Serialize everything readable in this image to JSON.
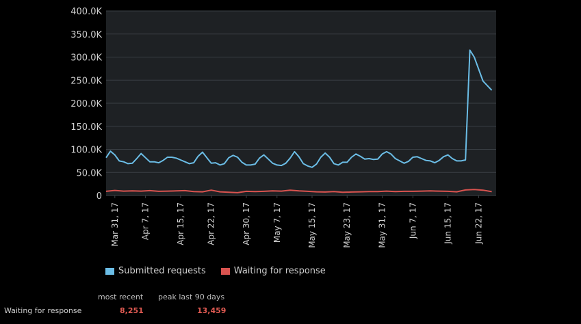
{
  "colors": {
    "plot_bg": "#1e2124",
    "grid": "#3a3f44",
    "axis_text": "#d0d0d0",
    "series_submitted": "#6bbde6",
    "series_waiting": "#d9534f",
    "stat_value": "#e05a52"
  },
  "chart_data": {
    "type": "line",
    "xlabel": "",
    "ylabel": "",
    "ylim": [
      0,
      400000
    ],
    "y_ticks": [
      "0",
      "50.0K",
      "100.0K",
      "150.0K",
      "200.0K",
      "250.0K",
      "300.0K",
      "350.0K",
      "400.0K"
    ],
    "x_range": [
      "2017-03-29",
      "2017-06-26"
    ],
    "x_tick_labels": [
      {
        "date": "2017-03-31",
        "label": "Mar 31, 17"
      },
      {
        "date": "2017-04-07",
        "label": "Apr 7, 17"
      },
      {
        "date": "2017-04-15",
        "label": "Apr 15, 17"
      },
      {
        "date": "2017-04-22",
        "label": "Apr 22, 17"
      },
      {
        "date": "2017-04-30",
        "label": "Apr 30, 17"
      },
      {
        "date": "2017-05-07",
        "label": "May 7, 17"
      },
      {
        "date": "2017-05-15",
        "label": "May 15, 17"
      },
      {
        "date": "2017-05-23",
        "label": "May 23, 17"
      },
      {
        "date": "2017-05-31",
        "label": "May 31, 17"
      },
      {
        "date": "2017-06-07",
        "label": "Jun 7, 17"
      },
      {
        "date": "2017-06-15",
        "label": "Jun 15, 17"
      },
      {
        "date": "2017-06-22",
        "label": "Jun 22, 17"
      }
    ],
    "grid": true,
    "legend_position": "bottom-left",
    "series": [
      {
        "name": "Submitted requests",
        "points": [
          [
            "2017-03-29",
            82000
          ],
          [
            "2017-03-30",
            96000
          ],
          [
            "2017-03-31",
            88000
          ],
          [
            "2017-04-01",
            75000
          ],
          [
            "2017-04-02",
            73000
          ],
          [
            "2017-04-03",
            69000
          ],
          [
            "2017-04-04",
            70000
          ],
          [
            "2017-04-05",
            80000
          ],
          [
            "2017-04-06",
            91000
          ],
          [
            "2017-04-07",
            82000
          ],
          [
            "2017-04-08",
            73000
          ],
          [
            "2017-04-09",
            73000
          ],
          [
            "2017-04-10",
            71000
          ],
          [
            "2017-04-11",
            76000
          ],
          [
            "2017-04-12",
            83000
          ],
          [
            "2017-04-13",
            83000
          ],
          [
            "2017-04-14",
            81000
          ],
          [
            "2017-04-15",
            77000
          ],
          [
            "2017-04-16",
            73000
          ],
          [
            "2017-04-17",
            69000
          ],
          [
            "2017-04-18",
            71000
          ],
          [
            "2017-04-19",
            85000
          ],
          [
            "2017-04-20",
            94000
          ],
          [
            "2017-04-21",
            82000
          ],
          [
            "2017-04-22",
            70000
          ],
          [
            "2017-04-23",
            71000
          ],
          [
            "2017-04-24",
            66000
          ],
          [
            "2017-04-25",
            69000
          ],
          [
            "2017-04-26",
            82000
          ],
          [
            "2017-04-27",
            87000
          ],
          [
            "2017-04-28",
            83000
          ],
          [
            "2017-04-29",
            72000
          ],
          [
            "2017-04-30",
            66000
          ],
          [
            "2017-05-01",
            66000
          ],
          [
            "2017-05-02",
            68000
          ],
          [
            "2017-05-03",
            81000
          ],
          [
            "2017-05-04",
            88000
          ],
          [
            "2017-05-05",
            79000
          ],
          [
            "2017-05-06",
            70000
          ],
          [
            "2017-05-07",
            66000
          ],
          [
            "2017-05-08",
            65000
          ],
          [
            "2017-05-09",
            70000
          ],
          [
            "2017-05-10",
            81000
          ],
          [
            "2017-05-11",
            95000
          ],
          [
            "2017-05-12",
            84000
          ],
          [
            "2017-05-13",
            69000
          ],
          [
            "2017-05-14",
            64000
          ],
          [
            "2017-05-15",
            61000
          ],
          [
            "2017-05-16",
            68000
          ],
          [
            "2017-05-17",
            83000
          ],
          [
            "2017-05-18",
            92000
          ],
          [
            "2017-05-19",
            83000
          ],
          [
            "2017-05-20",
            69000
          ],
          [
            "2017-05-21",
            66000
          ],
          [
            "2017-05-22",
            72000
          ],
          [
            "2017-05-23",
            72000
          ],
          [
            "2017-05-24",
            83000
          ],
          [
            "2017-05-25",
            90000
          ],
          [
            "2017-05-26",
            85000
          ],
          [
            "2017-05-27",
            79000
          ],
          [
            "2017-05-28",
            80000
          ],
          [
            "2017-05-29",
            78000
          ],
          [
            "2017-05-30",
            79000
          ],
          [
            "2017-05-31",
            90000
          ],
          [
            "2017-06-01",
            95000
          ],
          [
            "2017-06-02",
            90000
          ],
          [
            "2017-06-03",
            80000
          ],
          [
            "2017-06-04",
            75000
          ],
          [
            "2017-06-05",
            70000
          ],
          [
            "2017-06-06",
            74000
          ],
          [
            "2017-06-07",
            83000
          ],
          [
            "2017-06-08",
            84000
          ],
          [
            "2017-06-09",
            80000
          ],
          [
            "2017-06-10",
            76000
          ],
          [
            "2017-06-11",
            75000
          ],
          [
            "2017-06-12",
            71000
          ],
          [
            "2017-06-13",
            76000
          ],
          [
            "2017-06-14",
            84000
          ],
          [
            "2017-06-15",
            88000
          ],
          [
            "2017-06-16",
            80000
          ],
          [
            "2017-06-17",
            75000
          ],
          [
            "2017-06-18",
            75000
          ],
          [
            "2017-06-19",
            77000
          ],
          [
            "2017-06-20",
            315000
          ],
          [
            "2017-06-21",
            300000
          ],
          [
            "2017-06-22",
            274000
          ],
          [
            "2017-06-23",
            248000
          ],
          [
            "2017-06-24",
            238000
          ],
          [
            "2017-06-25",
            228000
          ]
        ]
      },
      {
        "name": "Waiting for response",
        "points": [
          [
            "2017-03-29",
            9000
          ],
          [
            "2017-03-31",
            11000
          ],
          [
            "2017-04-02",
            9500
          ],
          [
            "2017-04-04",
            10000
          ],
          [
            "2017-04-06",
            9500
          ],
          [
            "2017-04-08",
            10500
          ],
          [
            "2017-04-10",
            9000
          ],
          [
            "2017-04-12",
            9500
          ],
          [
            "2017-04-14",
            10000
          ],
          [
            "2017-04-16",
            10500
          ],
          [
            "2017-04-18",
            8500
          ],
          [
            "2017-04-20",
            8000
          ],
          [
            "2017-04-22",
            11500
          ],
          [
            "2017-04-24",
            8000
          ],
          [
            "2017-04-26",
            7000
          ],
          [
            "2017-04-28",
            6000
          ],
          [
            "2017-04-30",
            9000
          ],
          [
            "2017-05-02",
            8500
          ],
          [
            "2017-05-04",
            9000
          ],
          [
            "2017-05-06",
            10000
          ],
          [
            "2017-05-08",
            9500
          ],
          [
            "2017-05-10",
            11500
          ],
          [
            "2017-05-12",
            10000
          ],
          [
            "2017-05-14",
            9000
          ],
          [
            "2017-05-16",
            8000
          ],
          [
            "2017-05-18",
            7500
          ],
          [
            "2017-05-20",
            8500
          ],
          [
            "2017-05-22",
            7000
          ],
          [
            "2017-05-24",
            7500
          ],
          [
            "2017-05-26",
            8000
          ],
          [
            "2017-05-28",
            8500
          ],
          [
            "2017-05-30",
            8500
          ],
          [
            "2017-06-01",
            9500
          ],
          [
            "2017-06-03",
            8500
          ],
          [
            "2017-06-05",
            9000
          ],
          [
            "2017-06-07",
            9000
          ],
          [
            "2017-06-09",
            9500
          ],
          [
            "2017-06-11",
            10000
          ],
          [
            "2017-06-13",
            9500
          ],
          [
            "2017-06-15",
            9000
          ],
          [
            "2017-06-17",
            8000
          ],
          [
            "2017-06-19",
            12000
          ],
          [
            "2017-06-21",
            13000
          ],
          [
            "2017-06-23",
            11500
          ],
          [
            "2017-06-25",
            8251
          ]
        ]
      }
    ]
  },
  "legend": {
    "submitted_label": "Submitted requests",
    "waiting_label": "Waiting for response"
  },
  "stats": {
    "headers": {
      "recent": "most recent",
      "peak": "peak last 90 days"
    },
    "rows": [
      {
        "label": "Waiting for response",
        "recent": "8,251",
        "peak": "13,459"
      }
    ]
  }
}
